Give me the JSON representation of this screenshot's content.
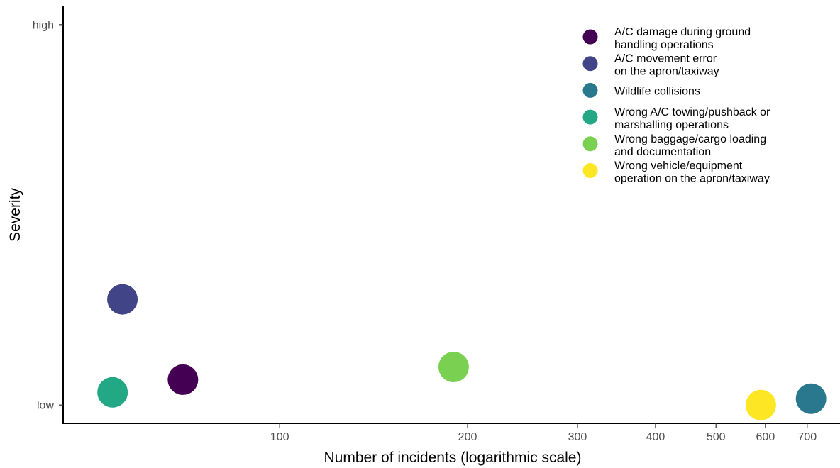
{
  "chart_data": {
    "type": "scatter",
    "title": "",
    "xlabel": "Number of incidents (logarithmic scale)",
    "ylabel": "Severity",
    "x_scale": "log",
    "xlim": [
      45,
      790
    ],
    "x_ticks": [
      100,
      200,
      300,
      400,
      500,
      600,
      700
    ],
    "y_ticks": [
      {
        "value": 1,
        "label": "low"
      },
      {
        "value": 10,
        "label": "high"
      }
    ],
    "ylim": [
      0.55,
      10.45
    ],
    "grid": false,
    "legend_position": "top-right",
    "series": [
      {
        "name": "A/C damage during ground\nhandling operations",
        "color": "#440154",
        "x": 70,
        "y": 1.6
      },
      {
        "name": "A/C movement error\non the apron/taxiway",
        "color": "#414487",
        "x": 56,
        "y": 3.5
      },
      {
        "name": "Wildlife collisions",
        "color": "#2A788E",
        "x": 710,
        "y": 1.15
      },
      {
        "name": "Wrong A/C towing/pushback or\nmarshalling operations",
        "color": "#22A884",
        "x": 54,
        "y": 1.3
      },
      {
        "name": "Wrong baggage/cargo loading\nand documentation",
        "color": "#7AD151",
        "x": 190,
        "y": 1.9
      },
      {
        "name": "Wrong vehicle/equipment\noperation on the apron/taxiway",
        "color": "#FDE725",
        "x": 590,
        "y": 1.0
      }
    ]
  }
}
